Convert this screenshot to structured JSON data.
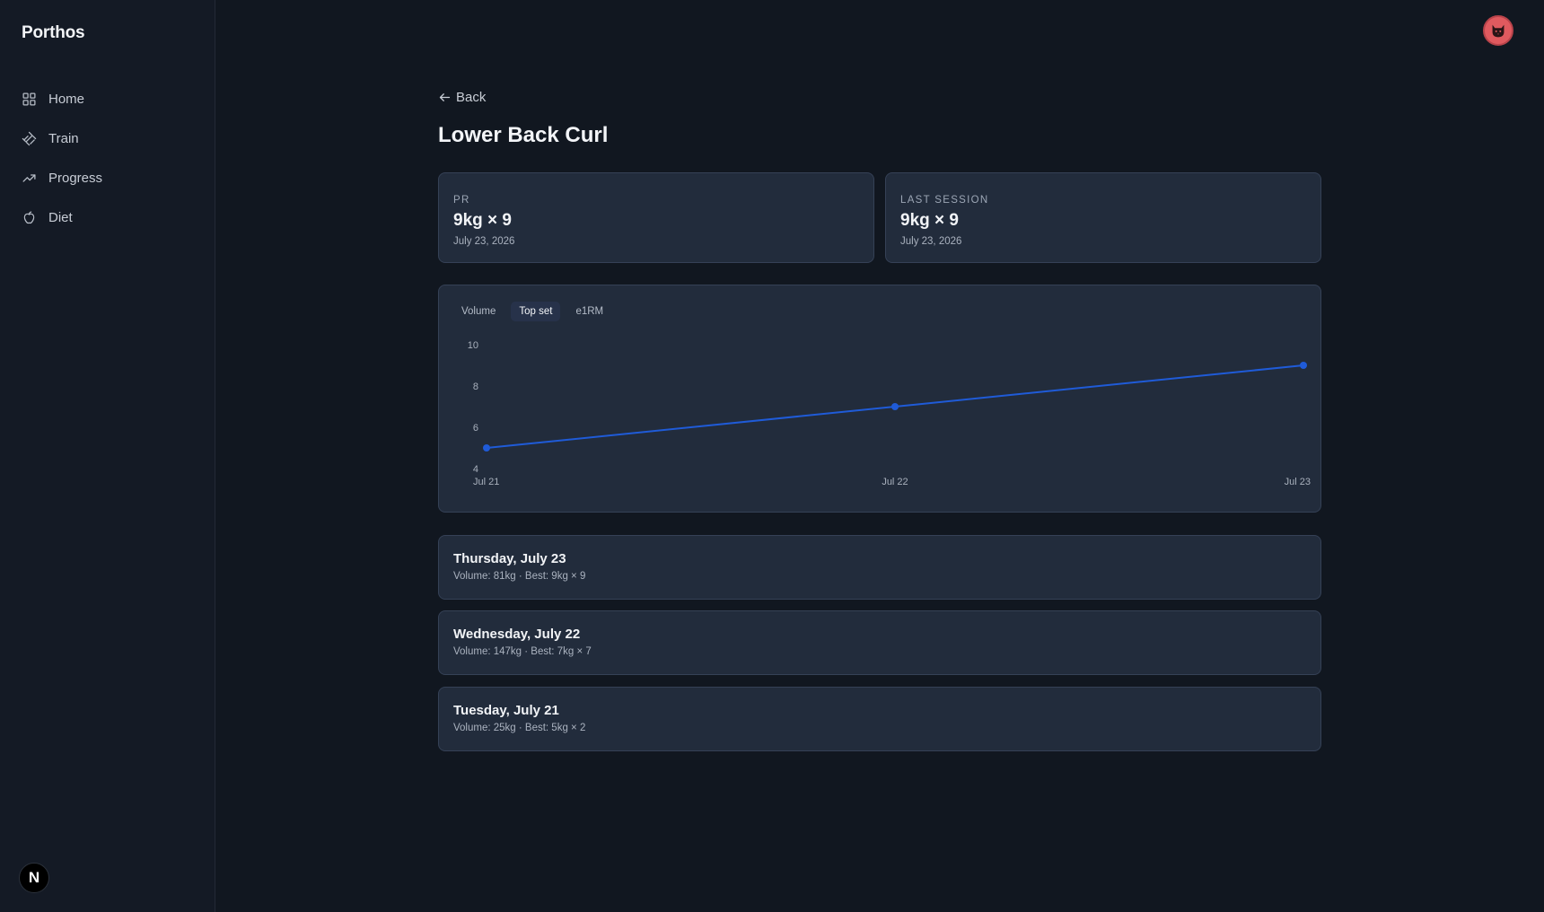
{
  "app": {
    "brand": "Porthos",
    "nav": [
      {
        "label": "Home",
        "icon": "grid-icon"
      },
      {
        "label": "Train",
        "icon": "dumbbell-icon"
      },
      {
        "label": "Progress",
        "icon": "trending-up-icon"
      },
      {
        "label": "Diet",
        "icon": "apple-icon"
      }
    ],
    "footer_badge": "N"
  },
  "page": {
    "back_label": "Back",
    "title": "Lower Back Curl"
  },
  "stats": {
    "pr": {
      "label": "PR",
      "value": "9kg × 9",
      "date": "July 23, 2026"
    },
    "last": {
      "label": "LAST SESSION",
      "value": "9kg × 9",
      "date": "July 23, 2026"
    }
  },
  "chart_tabs": {
    "volume": "Volume",
    "top_set": "Top set",
    "e1rm": "e1RM",
    "active": "Top set"
  },
  "chart_data": {
    "type": "line",
    "x": [
      "Jul 21",
      "Jul 22",
      "Jul 23"
    ],
    "series": [
      {
        "values": [
          5,
          7,
          9
        ]
      }
    ],
    "yticks": [
      4,
      6,
      8,
      10
    ],
    "ylim": [
      4,
      10
    ],
    "color": "#1f5bd8",
    "grid": false
  },
  "sessions": [
    {
      "title": "Thursday, July 23",
      "detail": "Volume: 81kg · Best: 9kg × 9"
    },
    {
      "title": "Wednesday, July 22",
      "detail": "Volume: 147kg · Best: 7kg × 7"
    },
    {
      "title": "Tuesday, July 21",
      "detail": "Volume: 25kg · Best: 5kg × 2"
    }
  ],
  "colors": {
    "background": "#111720",
    "card": "#222c3c",
    "accent": "#1f5bd8",
    "avatar": "#e05a5f"
  }
}
